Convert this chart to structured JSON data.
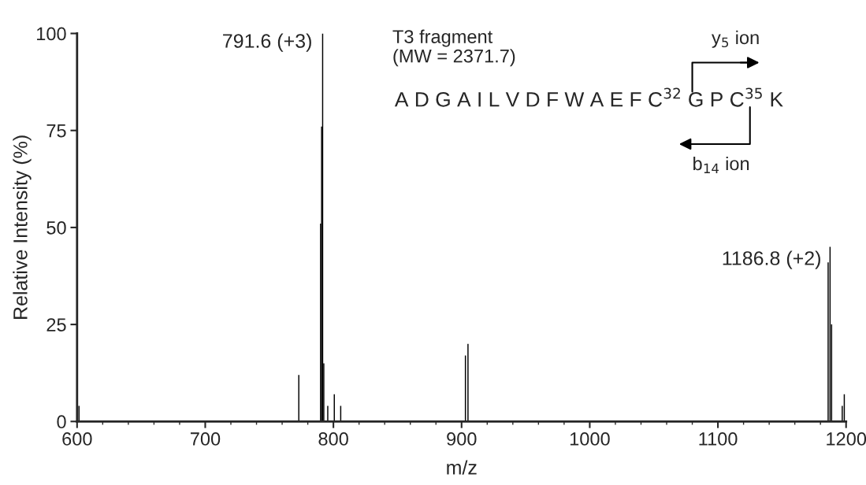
{
  "chart_data": {
    "type": "bar",
    "xlabel": "m/z",
    "ylabel": "Relative Intensity (%)",
    "x": [
      601.5,
      773,
      790,
      790.8,
      791.6,
      792.5,
      795.6,
      800.7,
      805.7,
      903,
      905,
      1186,
      1187.5,
      1188.7,
      1197,
      1198.6
    ],
    "values": [
      4,
      12,
      51,
      76,
      100,
      15,
      4,
      7,
      4,
      17,
      20,
      41,
      45,
      25,
      4,
      7
    ],
    "color": "#000000",
    "xlim": [
      600,
      1200
    ],
    "xticks": [
      600,
      700,
      800,
      900,
      1000,
      1100,
      1200
    ],
    "ylim": [
      0,
      100
    ],
    "yticks": [
      0,
      25,
      50,
      75,
      100
    ],
    "annotations": [
      {
        "text": "791.6 (+3)",
        "x": 791.6,
        "y": 100
      },
      {
        "text": "1186.8 (+2)",
        "x": 1186.8,
        "y": 45
      },
      "T3 fragment\n(MW = 2371.7)",
      "A D G A I L V D F W A E F C$^{32}$ G P C$^{35}$ K",
      "y$_{5}$ ion",
      "b$_{14}$ ion"
    ]
  }
}
